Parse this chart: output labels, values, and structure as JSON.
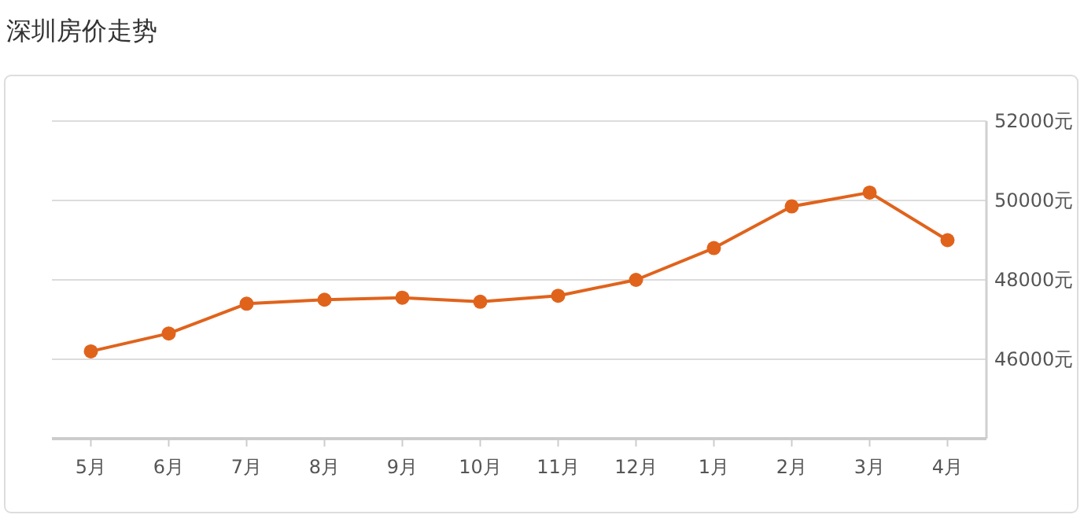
{
  "chart_data": {
    "type": "line",
    "title": "深圳房价走势",
    "categories": [
      "5月",
      "6月",
      "7月",
      "8月",
      "9月",
      "10月",
      "11月",
      "12月",
      "1月",
      "2月",
      "3月",
      "4月"
    ],
    "series": [
      {
        "color": "#e0631c",
        "values": [
          46200,
          46650,
          47400,
          47500,
          47550,
          47450,
          47600,
          48000,
          48800,
          49850,
          50200,
          49000
        ]
      }
    ],
    "ylim": [
      44000,
      52000
    ],
    "yticks": [
      {
        "value": 46000,
        "label": "46000元"
      },
      {
        "value": 48000,
        "label": "48000元"
      },
      {
        "value": 50000,
        "label": "50000元"
      },
      {
        "value": 52000,
        "label": "52000元"
      }
    ],
    "grid": "y",
    "marker": "circle",
    "line_style": "solid"
  }
}
